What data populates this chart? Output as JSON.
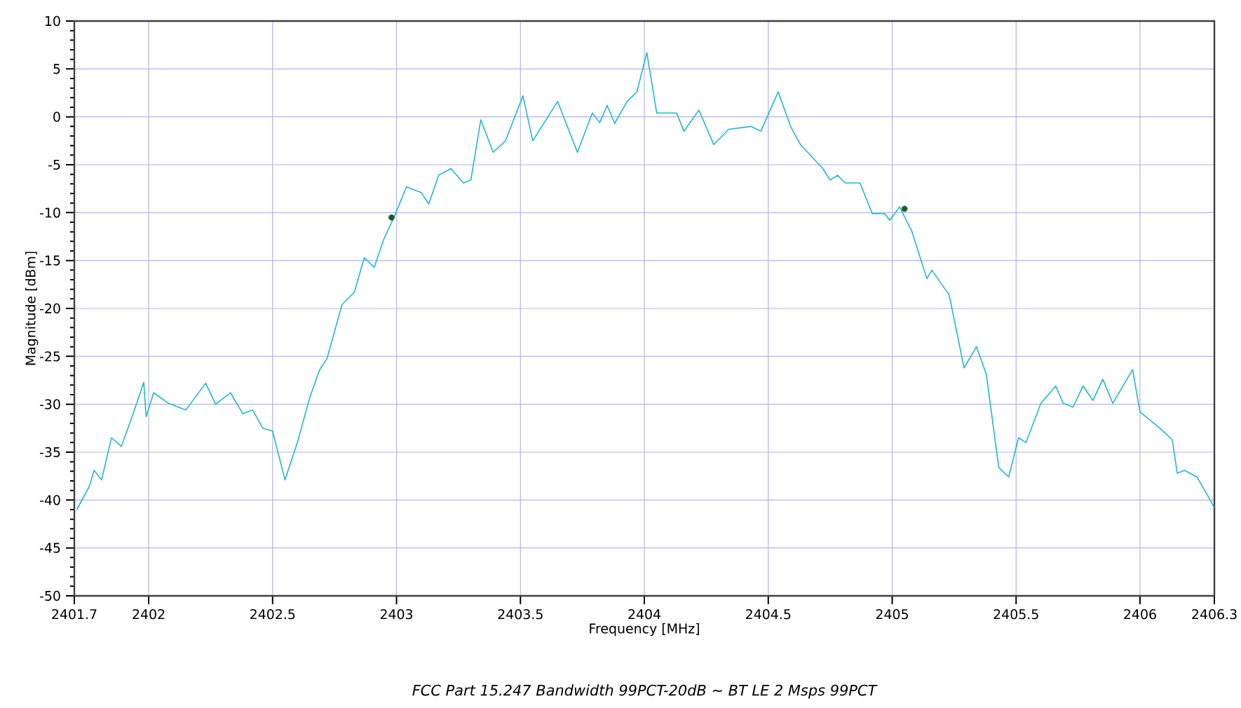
{
  "chart_data": {
    "type": "line",
    "title": "FCC Part 15.247 Bandwidth 99PCT-20dB ~ BT LE 2 Msps 99PCT",
    "xlabel": "Frequency [MHz]",
    "ylabel": "Magnitude [dBm]",
    "xlim": [
      2401.7,
      2406.3
    ],
    "ylim": [
      -50,
      10
    ],
    "xticks": [
      2401.7,
      2402,
      2402.5,
      2403,
      2403.5,
      2404,
      2404.5,
      2405,
      2405.5,
      2406,
      2406.3
    ],
    "yticks": [
      -50,
      -45,
      -40,
      -35,
      -30,
      -25,
      -20,
      -15,
      -10,
      -5,
      0,
      5,
      10
    ],
    "grid": true,
    "series": [
      {
        "color": "#1fb8d0",
        "marker": "none",
        "line_style": "solid",
        "x": [
          2401.71,
          2401.76,
          2401.78,
          2401.81,
          2401.85,
          2401.89,
          2401.94,
          2401.98,
          2401.99,
          2402.02,
          2402.08,
          2402.15,
          2402.23,
          2402.27,
          2402.33,
          2402.38,
          2402.42,
          2402.46,
          2402.5,
          2402.55,
          2402.6,
          2402.65,
          2402.69,
          2402.72,
          2402.78,
          2402.83,
          2402.87,
          2402.91,
          2402.95,
          2402.99,
          2403.04,
          2403.1,
          2403.13,
          2403.17,
          2403.22,
          2403.27,
          2403.3,
          2403.34,
          2403.39,
          2403.44,
          2403.51,
          2403.55,
          2403.65,
          2403.73,
          2403.79,
          2403.82,
          2403.85,
          2403.88,
          2403.93,
          2403.97,
          2404.01,
          2404.05,
          2404.13,
          2404.16,
          2404.22,
          2404.28,
          2404.34,
          2404.43,
          2404.47,
          2404.54,
          2404.59,
          2404.63,
          2404.72,
          2404.75,
          2404.78,
          2404.81,
          2404.87,
          2404.92,
          2404.97,
          2404.99,
          2405.03,
          2405.08,
          2405.14,
          2405.16,
          2405.23,
          2405.29,
          2405.34,
          2405.38,
          2405.43,
          2405.47,
          2405.51,
          2405.54,
          2405.6,
          2405.66,
          2405.69,
          2405.73,
          2405.77,
          2405.81,
          2405.85,
          2405.89,
          2405.97,
          2406.0,
          2406.08,
          2406.13,
          2406.15,
          2406.18,
          2406.23,
          2406.27,
          2406.3
        ],
        "values": [
          -41.0,
          -38.6,
          -36.9,
          -37.9,
          -33.5,
          -34.4,
          -30.8,
          -27.7,
          -31.3,
          -28.8,
          -29.9,
          -30.6,
          -27.8,
          -30.0,
          -28.8,
          -31.0,
          -30.6,
          -32.5,
          -32.8,
          -37.9,
          -34.0,
          -29.3,
          -26.4,
          -25.2,
          -19.6,
          -18.3,
          -14.7,
          -15.7,
          -12.7,
          -10.5,
          -7.3,
          -7.9,
          -9.1,
          -6.1,
          -5.4,
          -6.9,
          -6.6,
          -0.3,
          -3.7,
          -2.5,
          2.2,
          -2.5,
          1.6,
          -3.7,
          0.4,
          -0.6,
          1.2,
          -0.7,
          1.6,
          2.6,
          6.7,
          0.4,
          0.4,
          -1.5,
          0.7,
          -2.9,
          -1.3,
          -1.0,
          -1.5,
          2.6,
          -1.0,
          -2.9,
          -5.4,
          -6.6,
          -6.1,
          -6.9,
          -6.9,
          -10.1,
          -10.1,
          -10.8,
          -9.4,
          -12.0,
          -16.9,
          -16.0,
          -18.6,
          -26.2,
          -24.0,
          -26.9,
          -36.6,
          -37.6,
          -33.5,
          -34.0,
          -29.9,
          -28.1,
          -29.9,
          -30.3,
          -28.1,
          -29.6,
          -27.4,
          -29.9,
          -26.4,
          -30.8,
          -32.5,
          -33.7,
          -37.2,
          -36.9,
          -37.6,
          -39.4,
          -40.8
        ]
      },
      {
        "type": "scatter",
        "color": "#1b5e20",
        "marker": "circle",
        "x": [
          2402.98,
          2405.05
        ],
        "values": [
          -10.5,
          -9.6
        ]
      }
    ]
  }
}
